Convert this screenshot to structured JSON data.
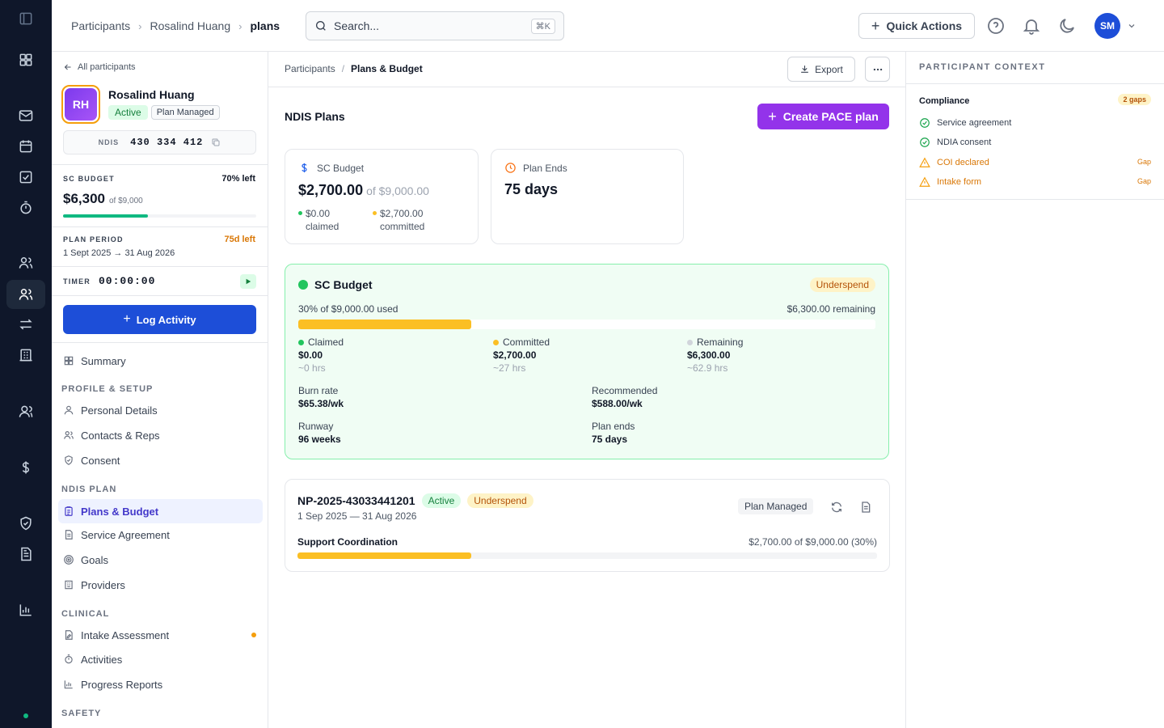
{
  "header": {
    "breadcrumb": [
      "Participants",
      "Rosalind Huang",
      "plans"
    ],
    "search_placeholder": "Search...",
    "search_shortcut": "⌘K",
    "quick_actions_label": "Quick Actions",
    "user_initials": "SM"
  },
  "participant": {
    "back_label": "All participants",
    "initials": "RH",
    "name": "Rosalind Huang",
    "status": "Active",
    "plan_type": "Plan Managed",
    "ndis_label": "NDIS",
    "ndis_number": "430 334 412",
    "sc_budget_label": "SC BUDGET",
    "sc_budget_left": "70% left",
    "sc_budget_amount": "$6,300",
    "sc_budget_of": "of $9,000",
    "sc_budget_remaining_fraction": 0.7,
    "plan_period_label": "PLAN PERIOD",
    "plan_period_left": "75d left",
    "plan_period_range": "1 Sept 2025 → 31 Aug 2026",
    "timer_label": "TIMER",
    "timer_value": "00:00:00",
    "log_activity_label": "Log Activity"
  },
  "nav": {
    "summary": "Summary",
    "section_profile": "PROFILE & SETUP",
    "personal_details": "Personal Details",
    "contacts_reps": "Contacts & Reps",
    "consent": "Consent",
    "section_ndis": "NDIS PLAN",
    "plans_budget": "Plans & Budget",
    "service_agreement": "Service Agreement",
    "goals": "Goals",
    "providers": "Providers",
    "section_clinical": "CLINICAL",
    "intake_assessment": "Intake Assessment",
    "activities": "Activities",
    "progress_reports": "Progress Reports",
    "section_safety": "SAFETY"
  },
  "main": {
    "breadcrumb_root": "Participants",
    "breadcrumb_current": "Plans & Budget",
    "export_label": "Export",
    "title": "NDIS Plans",
    "create_label": "Create PACE plan",
    "sc_card": {
      "label": "SC Budget",
      "amount": "$2,700.00",
      "of": "of $9,000.00",
      "claimed_value": "$0.00",
      "claimed_label": "claimed",
      "committed_value": "$2,700.00",
      "committed_label": "committed"
    },
    "ends_card": {
      "label": "Plan Ends",
      "value": "75 days"
    },
    "budget_panel": {
      "title": "SC Budget",
      "badge": "Underspend",
      "used_text": "30% of $9,000.00 used",
      "remaining_text": "$6,300.00 remaining",
      "used_fraction": 0.3,
      "claimed_label": "Claimed",
      "claimed_value": "$0.00",
      "claimed_hrs": "~0 hrs",
      "committed_label": "Committed",
      "committed_value": "$2,700.00",
      "committed_hrs": "~27 hrs",
      "remaining_label": "Remaining",
      "remaining_value": "$6,300.00",
      "remaining_hrs": "~62.9 hrs",
      "burn_rate_label": "Burn rate",
      "burn_rate_value": "$65.38/wk",
      "recommended_label": "Recommended",
      "recommended_value": "$588.00/wk",
      "runway_label": "Runway",
      "runway_value": "96 weeks",
      "plan_ends_label": "Plan ends",
      "plan_ends_value": "75 days"
    },
    "plan_row": {
      "id": "NP-2025-43033441201",
      "status": "Active",
      "badge": "Underspend",
      "dates": "1 Sep 2025 — 31 Aug 2026",
      "type": "Plan Managed",
      "category": "Support Coordination",
      "amount_text": "$2,700.00 of $9,000.00 (30%)",
      "used_fraction": 0.3
    }
  },
  "context": {
    "title": "PARTICIPANT CONTEXT",
    "compliance_label": "Compliance",
    "gaps_badge": "2 gaps",
    "items": [
      {
        "label": "Service agreement",
        "state": "ok",
        "tag": ""
      },
      {
        "label": "NDIA consent",
        "state": "ok",
        "tag": ""
      },
      {
        "label": "COI declared",
        "state": "gap",
        "tag": "Gap"
      },
      {
        "label": "Intake form",
        "state": "gap",
        "tag": "Gap"
      }
    ]
  },
  "colors": {
    "rail_bg": "#0f172a",
    "primary": "#1d4ed8",
    "purple": "#9333ea",
    "green": "#22c55e",
    "amber": "#fbbf24"
  }
}
